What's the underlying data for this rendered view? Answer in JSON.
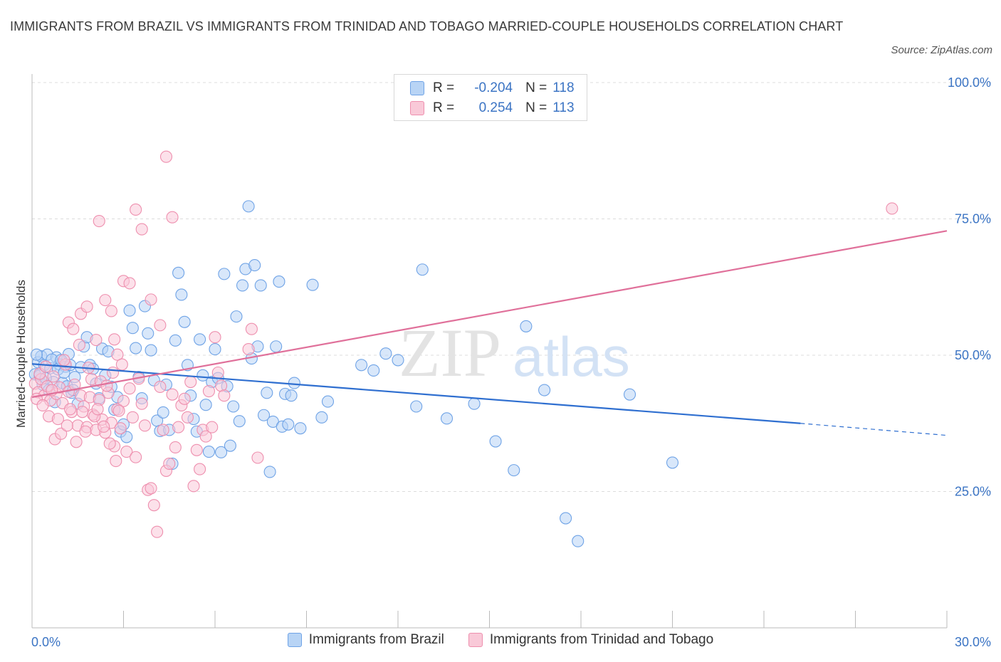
{
  "title": "IMMIGRANTS FROM BRAZIL VS IMMIGRANTS FROM TRINIDAD AND TOBAGO MARRIED-COUPLE HOUSEHOLDS CORRELATION CHART",
  "source": "Source: ZipAtlas.com",
  "watermark": {
    "zip": "ZIP",
    "atlas": "atlas"
  },
  "stats": [
    {
      "r_label": "R =",
      "r_value": "-0.204",
      "n_label": "N =",
      "n_value": "118",
      "color": "#6fa3e6"
    },
    {
      "r_label": "R =",
      "r_value": "0.254",
      "n_label": "N =",
      "n_value": "113",
      "color": "#ee8fae"
    }
  ],
  "chart_data": {
    "type": "scatter",
    "title": "IMMIGRANTS FROM BRAZIL VS IMMIGRANTS FROM TRINIDAD AND TOBAGO MARRIED-COUPLE HOUSEHOLDS CORRELATION CHART",
    "xlabel": "",
    "ylabel": "Married-couple Households",
    "xlim": [
      0,
      30
    ],
    "ylim": [
      0,
      100
    ],
    "x_tick_labels": [
      "0.0%",
      "30.0%"
    ],
    "y_tick_labels": [
      "100.0%",
      "75.0%",
      "50.0%",
      "25.0%"
    ],
    "y_ticks": [
      100,
      75,
      50,
      25
    ],
    "grid": true,
    "legend_position": "bottom",
    "series": [
      {
        "name": "Immigrants from Brazil",
        "color": "#6fa3e6",
        "fill": "#b8d4f5",
        "trend": {
          "x0": 0,
          "y0": 48.4,
          "x1": 25.2,
          "y1": 37.5,
          "dash_to_x": 30,
          "dash_to_y": 35.3
        },
        "points": [
          [
            0.1,
            46.5
          ],
          [
            0.2,
            48.7
          ],
          [
            0.3,
            49.8
          ],
          [
            0.4,
            48.2
          ],
          [
            0.5,
            50.1
          ],
          [
            0.6,
            47.6
          ],
          [
            0.7,
            45.1
          ],
          [
            0.8,
            49.6
          ],
          [
            0.9,
            48.3
          ],
          [
            1.0,
            44.9
          ],
          [
            1.1,
            47.9
          ],
          [
            1.2,
            50.2
          ],
          [
            1.3,
            43.1
          ],
          [
            1.4,
            46.0
          ],
          [
            1.5,
            41.1
          ],
          [
            1.6,
            47.8
          ],
          [
            1.7,
            51.6
          ],
          [
            1.8,
            53.3
          ],
          [
            1.9,
            48.2
          ],
          [
            2.0,
            47.5
          ],
          [
            2.1,
            44.8
          ],
          [
            2.2,
            42.1
          ],
          [
            2.3,
            51.2
          ],
          [
            2.4,
            46.3
          ],
          [
            2.5,
            50.7
          ],
          [
            2.6,
            44.2
          ],
          [
            2.7,
            40.0
          ],
          [
            2.8,
            42.3
          ],
          [
            2.9,
            36.0
          ],
          [
            3.0,
            37.3
          ],
          [
            3.1,
            35.0
          ],
          [
            3.2,
            58.2
          ],
          [
            3.3,
            55.0
          ],
          [
            3.4,
            51.3
          ],
          [
            3.5,
            46.0
          ],
          [
            3.6,
            42.1
          ],
          [
            3.7,
            59.0
          ],
          [
            3.8,
            54.0
          ],
          [
            3.9,
            50.9
          ],
          [
            4.0,
            45.4
          ],
          [
            4.1,
            38.0
          ],
          [
            4.2,
            36.1
          ],
          [
            4.3,
            39.5
          ],
          [
            4.4,
            44.6
          ],
          [
            4.5,
            36.3
          ],
          [
            4.6,
            30.1
          ],
          [
            4.7,
            52.7
          ],
          [
            4.8,
            65.1
          ],
          [
            4.9,
            61.1
          ],
          [
            5.0,
            56.1
          ],
          [
            5.1,
            48.2
          ],
          [
            5.2,
            42.6
          ],
          [
            5.3,
            38.3
          ],
          [
            5.4,
            36.0
          ],
          [
            5.5,
            52.9
          ],
          [
            5.6,
            46.3
          ],
          [
            5.7,
            40.9
          ],
          [
            5.8,
            32.3
          ],
          [
            5.9,
            45.1
          ],
          [
            6.0,
            51.1
          ],
          [
            6.1,
            45.8
          ],
          [
            6.2,
            32.2
          ],
          [
            6.3,
            64.9
          ],
          [
            6.4,
            44.3
          ],
          [
            6.5,
            33.4
          ],
          [
            6.6,
            40.6
          ],
          [
            6.7,
            57.1
          ],
          [
            6.8,
            37.9
          ],
          [
            6.9,
            62.8
          ],
          [
            7.0,
            65.8
          ],
          [
            7.1,
            77.3
          ],
          [
            7.2,
            49.4
          ],
          [
            7.3,
            66.5
          ],
          [
            7.4,
            51.6
          ],
          [
            7.5,
            62.8
          ],
          [
            7.6,
            39.0
          ],
          [
            7.7,
            43.1
          ],
          [
            7.8,
            28.6
          ],
          [
            7.9,
            37.8
          ],
          [
            8.0,
            51.6
          ],
          [
            8.1,
            63.5
          ],
          [
            8.2,
            36.9
          ],
          [
            8.3,
            42.9
          ],
          [
            8.4,
            37.3
          ],
          [
            8.5,
            42.6
          ],
          [
            8.6,
            44.9
          ],
          [
            8.8,
            36.6
          ],
          [
            9.2,
            62.9
          ],
          [
            9.5,
            38.6
          ],
          [
            9.7,
            41.5
          ],
          [
            10.8,
            48.2
          ],
          [
            11.2,
            47.2
          ],
          [
            11.6,
            50.3
          ],
          [
            12.0,
            49.1
          ],
          [
            12.6,
            40.6
          ],
          [
            12.8,
            65.7
          ],
          [
            13.6,
            38.4
          ],
          [
            14.5,
            41.1
          ],
          [
            15.2,
            34.2
          ],
          [
            15.8,
            28.9
          ],
          [
            16.2,
            55.3
          ],
          [
            16.8,
            43.6
          ],
          [
            17.5,
            20.1
          ],
          [
            17.9,
            15.9
          ],
          [
            19.6,
            42.8
          ],
          [
            21.0,
            30.3
          ],
          [
            0.15,
            50.1
          ],
          [
            0.25,
            46.3
          ],
          [
            0.35,
            44.6
          ],
          [
            0.45,
            45.8
          ],
          [
            0.55,
            43.6
          ],
          [
            0.65,
            49.2
          ],
          [
            0.75,
            41.4
          ],
          [
            0.85,
            47.4
          ],
          [
            0.95,
            49.1
          ],
          [
            1.05,
            46.8
          ],
          [
            1.15,
            44.3
          ],
          [
            1.25,
            48.2
          ],
          [
            1.35,
            43.6
          ]
        ]
      },
      {
        "name": "Immigrants from Trinidad and Tobago",
        "color": "#ee8fae",
        "fill": "#f9c9d8",
        "trend": {
          "x0": 0,
          "y0": 42.3,
          "x1": 30,
          "y1": 72.8
        },
        "points": [
          [
            0.1,
            44.8
          ],
          [
            0.2,
            43.2
          ],
          [
            0.3,
            45.6
          ],
          [
            0.4,
            42.6
          ],
          [
            0.5,
            44.3
          ],
          [
            0.6,
            41.7
          ],
          [
            0.7,
            46.1
          ],
          [
            0.8,
            42.9
          ],
          [
            0.9,
            44.1
          ],
          [
            1.0,
            41.2
          ],
          [
            1.1,
            48.3
          ],
          [
            1.2,
            43.3
          ],
          [
            1.3,
            39.6
          ],
          [
            1.4,
            44.6
          ],
          [
            1.5,
            37.1
          ],
          [
            1.6,
            42.6
          ],
          [
            1.7,
            40.6
          ],
          [
            1.8,
            36.8
          ],
          [
            1.9,
            42.3
          ],
          [
            2.0,
            39.1
          ],
          [
            2.1,
            36.3
          ],
          [
            2.2,
            41.8
          ],
          [
            2.3,
            38.2
          ],
          [
            2.4,
            35.8
          ],
          [
            2.5,
            43.1
          ],
          [
            2.6,
            37.6
          ],
          [
            2.7,
            33.3
          ],
          [
            2.8,
            40.1
          ],
          [
            2.9,
            36.6
          ],
          [
            3.0,
            41.6
          ],
          [
            3.1,
            32.3
          ],
          [
            3.2,
            43.9
          ],
          [
            3.3,
            38.6
          ],
          [
            3.4,
            31.3
          ],
          [
            3.5,
            45.7
          ],
          [
            3.6,
            41.1
          ],
          [
            3.7,
            37.1
          ],
          [
            3.8,
            25.3
          ],
          [
            3.9,
            25.6
          ],
          [
            4.0,
            22.5
          ],
          [
            4.1,
            17.6
          ],
          [
            4.2,
            44.2
          ],
          [
            4.3,
            36.3
          ],
          [
            4.4,
            28.8
          ],
          [
            4.5,
            30.1
          ],
          [
            4.6,
            42.8
          ],
          [
            4.7,
            33.1
          ],
          [
            4.8,
            36.8
          ],
          [
            4.9,
            40.8
          ],
          [
            5.0,
            42.0
          ],
          [
            5.1,
            38.6
          ],
          [
            5.2,
            45.1
          ],
          [
            5.3,
            26.0
          ],
          [
            5.4,
            32.6
          ],
          [
            5.5,
            29.1
          ],
          [
            5.6,
            36.3
          ],
          [
            5.7,
            35.1
          ],
          [
            5.8,
            43.4
          ],
          [
            5.9,
            36.8
          ],
          [
            6.0,
            53.3
          ],
          [
            6.1,
            46.8
          ],
          [
            6.2,
            44.4
          ],
          [
            6.3,
            42.6
          ],
          [
            1.2,
            56.0
          ],
          [
            1.6,
            57.6
          ],
          [
            1.8,
            58.9
          ],
          [
            2.1,
            52.8
          ],
          [
            2.4,
            60.1
          ],
          [
            2.6,
            58.1
          ],
          [
            2.7,
            52.9
          ],
          [
            2.8,
            50.1
          ],
          [
            2.2,
            74.6
          ],
          [
            3.0,
            63.6
          ],
          [
            3.2,
            63.2
          ],
          [
            3.4,
            76.7
          ],
          [
            3.6,
            73.1
          ],
          [
            3.9,
            60.2
          ],
          [
            4.2,
            55.5
          ],
          [
            4.4,
            86.4
          ],
          [
            4.6,
            75.3
          ],
          [
            7.2,
            54.8
          ],
          [
            7.4,
            31.2
          ],
          [
            7.1,
            51.1
          ],
          [
            28.2,
            76.9
          ],
          [
            0.15,
            42.0
          ],
          [
            0.25,
            46.6
          ],
          [
            0.35,
            40.8
          ],
          [
            0.45,
            47.9
          ],
          [
            0.55,
            38.8
          ],
          [
            0.65,
            43.6
          ],
          [
            0.75,
            34.6
          ],
          [
            0.85,
            38.3
          ],
          [
            0.95,
            35.6
          ],
          [
            1.05,
            49.1
          ],
          [
            1.15,
            37.1
          ],
          [
            1.25,
            40.1
          ],
          [
            1.35,
            54.8
          ],
          [
            1.45,
            34.1
          ],
          [
            1.55,
            51.9
          ],
          [
            1.65,
            39.6
          ],
          [
            1.75,
            36.0
          ],
          [
            1.85,
            47.7
          ],
          [
            1.95,
            45.6
          ],
          [
            2.05,
            38.8
          ],
          [
            2.15,
            40.1
          ],
          [
            2.25,
            45.2
          ],
          [
            2.35,
            36.9
          ],
          [
            2.45,
            44.4
          ],
          [
            2.55,
            33.8
          ],
          [
            2.65,
            46.8
          ],
          [
            2.75,
            30.6
          ],
          [
            2.85,
            39.8
          ],
          [
            2.95,
            48.3
          ]
        ]
      }
    ]
  },
  "legend": [
    {
      "label": "Immigrants from Brazil"
    },
    {
      "label": "Immigrants from Trinidad and Tobago"
    }
  ]
}
